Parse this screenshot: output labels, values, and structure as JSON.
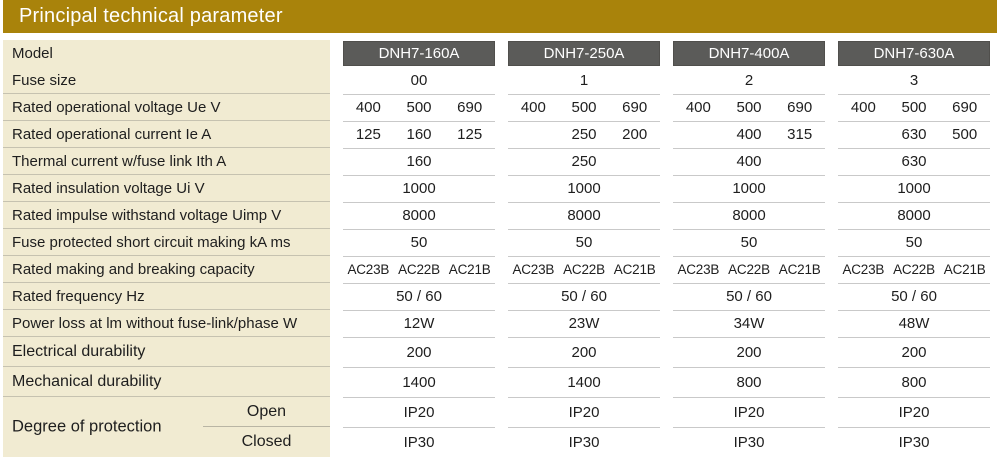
{
  "title": "Principal technical parameter",
  "colors": {
    "header_bg": "#A9830B",
    "header_text": "#FFFFFF",
    "label_column_bg": "#F1EBD2",
    "model_badge_bg": "#5B5B59",
    "model_badge_text": "#FFFFFF",
    "body_text": "#1E1E1E",
    "separator_line": "#C9C9C9"
  },
  "row_labels": [
    "Model",
    "Fuse size",
    "Rated operational voltage Ue V",
    "Rated operational current Ie A",
    "Thermal current w/fuse link Ith A",
    "Rated insulation voltage Ui V",
    "Rated impulse withstand voltage Uimp V",
    "Fuse protected short circuit making kA ms",
    "Rated making and breaking capacity",
    "Rated frequency Hz",
    "Power loss at lm without fuse-link/phase W",
    "Electrical durability",
    "Mechanical durability",
    "Degree of protection"
  ],
  "degree_options": {
    "open": "Open",
    "closed": "Closed"
  },
  "products": [
    {
      "model": "DNH7-160A",
      "fuse_size": "00",
      "voltages": [
        "400",
        "500",
        "690"
      ],
      "currents": [
        "125",
        "160",
        "125"
      ],
      "thermal_current": "160",
      "insulation_voltage": "1000",
      "impulse_voltage": "8000",
      "short_circuit_making": "50",
      "making_breaking": [
        "AC23B",
        "AC22B",
        "AC21B"
      ],
      "frequency": "50 / 60",
      "power_loss": "12W",
      "electrical_durability": "200",
      "mechanical_durability": "1400",
      "protection_open": "IP20",
      "protection_closed": "IP30"
    },
    {
      "model": "DNH7-250A",
      "fuse_size": "1",
      "voltages": [
        "400",
        "500",
        "690"
      ],
      "currents": [
        "",
        "250",
        "200"
      ],
      "thermal_current": "250",
      "insulation_voltage": "1000",
      "impulse_voltage": "8000",
      "short_circuit_making": "50",
      "making_breaking": [
        "AC23B",
        "AC22B",
        "AC21B"
      ],
      "frequency": "50 / 60",
      "power_loss": "23W",
      "electrical_durability": "200",
      "mechanical_durability": "1400",
      "protection_open": "IP20",
      "protection_closed": "IP30"
    },
    {
      "model": "DNH7-400A",
      "fuse_size": "2",
      "voltages": [
        "400",
        "500",
        "690"
      ],
      "currents": [
        "",
        "400",
        "315"
      ],
      "thermal_current": "400",
      "insulation_voltage": "1000",
      "impulse_voltage": "8000",
      "short_circuit_making": "50",
      "making_breaking": [
        "AC23B",
        "AC22B",
        "AC21B"
      ],
      "frequency": "50 / 60",
      "power_loss": "34W",
      "electrical_durability": "200",
      "mechanical_durability": "800",
      "protection_open": "IP20",
      "protection_closed": "IP30"
    },
    {
      "model": "DNH7-630A",
      "fuse_size": "3",
      "voltages": [
        "400",
        "500",
        "690"
      ],
      "currents": [
        "",
        "630",
        "500"
      ],
      "thermal_current": "630",
      "insulation_voltage": "1000",
      "impulse_voltage": "8000",
      "short_circuit_making": "50",
      "making_breaking": [
        "AC23B",
        "AC22B",
        "AC21B"
      ],
      "frequency": "50 / 60",
      "power_loss": "48W",
      "electrical_durability": "200",
      "mechanical_durability": "800",
      "protection_open": "IP20",
      "protection_closed": "IP30"
    }
  ]
}
